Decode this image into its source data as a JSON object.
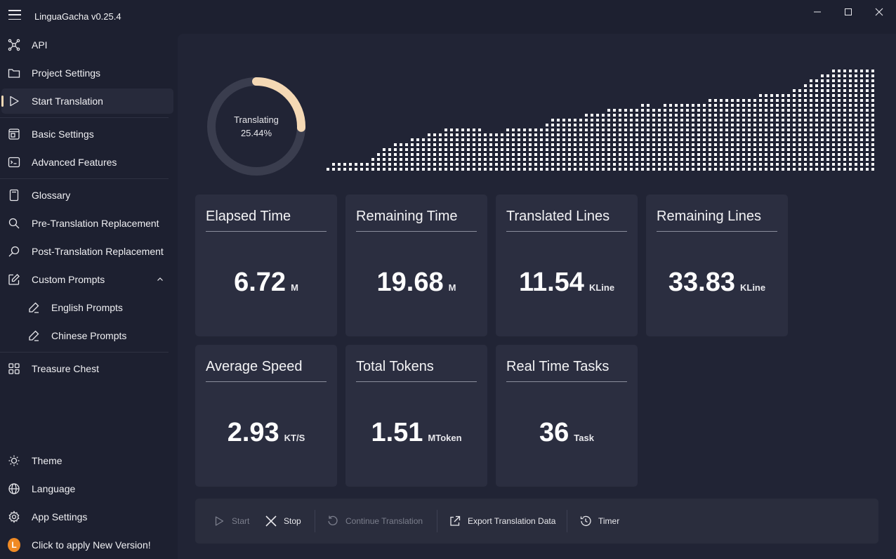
{
  "app": {
    "title": "LinguaGacha v0.25.4"
  },
  "sidebar": {
    "items": [
      {
        "label": "API",
        "icon": "api-nodes-icon"
      },
      {
        "label": "Project Settings",
        "icon": "folder-icon"
      },
      {
        "label": "Start Translation",
        "icon": "play-icon",
        "active": true
      },
      {
        "label": "Basic Settings",
        "icon": "basic-settings-icon"
      },
      {
        "label": "Advanced Features",
        "icon": "terminal-icon"
      },
      {
        "label": "Glossary",
        "icon": "book-icon"
      },
      {
        "label": "Pre-Translation Replacement",
        "icon": "search-icon"
      },
      {
        "label": "Post-Translation Replacement",
        "icon": "search-icon"
      },
      {
        "label": "Custom Prompts",
        "icon": "edit-icon",
        "expanded": true
      },
      {
        "label": "English Prompts",
        "icon": "pen-icon"
      },
      {
        "label": "Chinese Prompts",
        "icon": "pen-icon"
      },
      {
        "label": "Treasure Chest",
        "icon": "apps-grid-icon"
      }
    ],
    "bottom": [
      {
        "label": "Theme",
        "icon": "brightness-icon"
      },
      {
        "label": "Language",
        "icon": "globe-icon"
      },
      {
        "label": "App Settings",
        "icon": "gear-icon"
      },
      {
        "label": "Click to apply New Version!",
        "icon": "update-badge-icon",
        "badge": "L"
      }
    ]
  },
  "progress": {
    "status": "Translating",
    "percent_text": "25.44%",
    "value": 0.2544,
    "accent": "#f4d8b4"
  },
  "speed_graph": {
    "levels": [
      1,
      2,
      2,
      2,
      2,
      2,
      2,
      2,
      3,
      4,
      5,
      5,
      6,
      6,
      6,
      7,
      7,
      7,
      8,
      8,
      8,
      9,
      9,
      9,
      9,
      9,
      9,
      9,
      8,
      8,
      8,
      8,
      9,
      9,
      9,
      9,
      9,
      9,
      9,
      10,
      11,
      11,
      11,
      11,
      11,
      11,
      12,
      12,
      12,
      12,
      13,
      13,
      13,
      13,
      13,
      13,
      14,
      14,
      13,
      13,
      14,
      14,
      14,
      14,
      14,
      14,
      14,
      14,
      15,
      15,
      15,
      15,
      15,
      15,
      15,
      15,
      15,
      16,
      16,
      16,
      16,
      16,
      16,
      17,
      17,
      18,
      19,
      19,
      20,
      20,
      21,
      21,
      21,
      21,
      21,
      21,
      21,
      21,
      21
    ],
    "max_level": 21
  },
  "stats": [
    {
      "title": "Elapsed Time",
      "value": "6.72",
      "unit": "M"
    },
    {
      "title": "Remaining Time",
      "value": "19.68",
      "unit": "M"
    },
    {
      "title": "Translated Lines",
      "value": "11.54",
      "unit": "KLine"
    },
    {
      "title": "Remaining Lines",
      "value": "33.83",
      "unit": "KLine"
    },
    {
      "title": "Average Speed",
      "value": "2.93",
      "unit": "KT/S"
    },
    {
      "title": "Total Tokens",
      "value": "1.51",
      "unit": "MToken"
    },
    {
      "title": "Real Time Tasks",
      "value": "36",
      "unit": "Task"
    }
  ],
  "commands": [
    {
      "label": "Start",
      "icon": "play-icon",
      "enabled": false
    },
    {
      "label": "Stop",
      "icon": "close-icon",
      "enabled": true
    },
    {
      "label": "Continue Translation",
      "icon": "rotate-icon",
      "enabled": false
    },
    {
      "label": "Export Translation Data",
      "icon": "share-icon",
      "enabled": true
    },
    {
      "label": "Timer",
      "icon": "history-icon",
      "enabled": true
    }
  ],
  "colors": {
    "background": "#1d2030",
    "panel": "#212435",
    "card": "#2b2e40",
    "accent": "#f4d8b4",
    "update_badge": "#f08a24"
  }
}
